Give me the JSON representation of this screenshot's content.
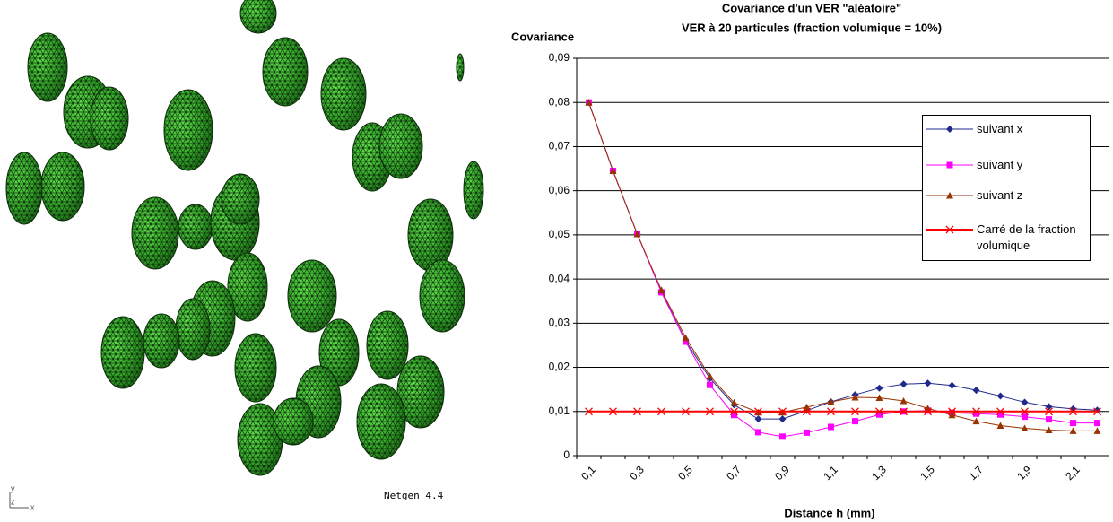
{
  "viewer": {
    "label": "Netgen 4.4",
    "axes": [
      "y",
      "z",
      "x"
    ]
  },
  "chart_data": {
    "type": "line",
    "title": "Covariance d'un VER \"aléatoire\"",
    "subtitle": "VER à 20 particules (fraction volumique = 10%)",
    "y_label": "Covariance",
    "x_label": "Distance h (mm)",
    "categories": [
      "0,1",
      null,
      "0,3",
      null,
      "0,5",
      null,
      "0,7",
      null,
      "0,9",
      null,
      "1,1",
      null,
      "1,3",
      null,
      "1,5",
      null,
      "1,7",
      null,
      "1,9",
      null,
      "2,1",
      null
    ],
    "series": [
      {
        "name": "suivant x",
        "color": "#1f2a8c",
        "marker": "diamond",
        "values": [
          0.08,
          0.0645,
          0.0502,
          0.0372,
          0.026,
          0.0175,
          0.0115,
          0.0083,
          0.0083,
          0.0102,
          0.0122,
          0.0138,
          0.0153,
          0.0162,
          0.0164,
          0.0159,
          0.0148,
          0.0135,
          0.0121,
          0.0111,
          0.0106,
          0.0103
        ]
      },
      {
        "name": "suivant y",
        "color": "#ff00ff",
        "marker": "square",
        "values": [
          0.08,
          0.0645,
          0.0502,
          0.037,
          0.0258,
          0.016,
          0.0092,
          0.0053,
          0.0043,
          0.0052,
          0.0065,
          0.0078,
          0.0093,
          0.01,
          0.0102,
          0.0097,
          0.0095,
          0.0093,
          0.0088,
          0.0082,
          0.0074,
          0.0074
        ]
      },
      {
        "name": "suivant z",
        "color": "#993300",
        "marker": "triangle",
        "values": [
          0.08,
          0.0645,
          0.0502,
          0.0375,
          0.0267,
          0.018,
          0.012,
          0.0098,
          0.0098,
          0.011,
          0.0122,
          0.0132,
          0.0131,
          0.0124,
          0.0107,
          0.0092,
          0.0078,
          0.0068,
          0.0062,
          0.0058,
          0.0056,
          0.0056
        ]
      },
      {
        "name": "Carré de la fraction volumique",
        "color": "#ff0000",
        "marker": "x",
        "values": [
          0.01,
          0.01,
          0.01,
          0.01,
          0.01,
          0.01,
          0.01,
          0.01,
          0.01,
          0.01,
          0.01,
          0.01,
          0.01,
          0.01,
          0.01,
          0.01,
          0.01,
          0.01,
          0.01,
          0.01,
          0.01,
          0.01
        ]
      }
    ],
    "ylim": [
      0,
      0.09
    ],
    "yticks": [
      0,
      {
        "value": 0.01,
        "label": "0,01"
      },
      {
        "value": 0.02,
        "label": "0,02"
      },
      {
        "value": 0.03,
        "label": "0,03"
      },
      {
        "value": 0.04,
        "label": "0,04"
      },
      {
        "value": 0.05,
        "label": "0,05"
      },
      {
        "value": 0.06,
        "label": "0,06"
      },
      {
        "value": 0.07,
        "label": "0,07"
      },
      {
        "value": 0.08,
        "label": "0,08"
      },
      {
        "value": 0.09,
        "label": "0,09"
      }
    ],
    "grid": true
  }
}
